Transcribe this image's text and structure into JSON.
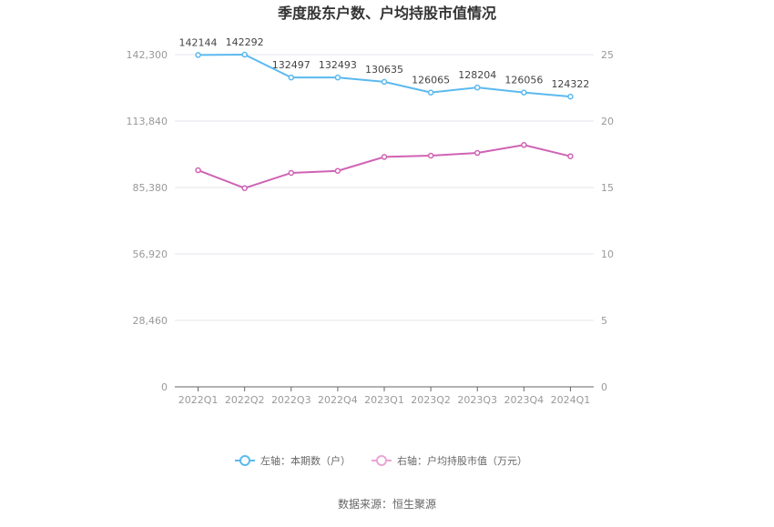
{
  "chart_data": {
    "type": "line",
    "title": "季度股东户数、户均持股市值情况",
    "categories": [
      "2022Q1",
      "2022Q2",
      "2022Q3",
      "2022Q4",
      "2023Q1",
      "2023Q2",
      "2023Q3",
      "2023Q4",
      "2024Q1"
    ],
    "left_axis": {
      "ylim": [
        0,
        142300
      ],
      "ticks": [
        0,
        28460,
        56920,
        85380,
        113840,
        142300
      ],
      "tick_labels": [
        "0",
        "28,460",
        "56,920",
        "85,380",
        "113,840",
        "142,300"
      ]
    },
    "right_axis": {
      "ylim": [
        0,
        25
      ],
      "ticks": [
        0,
        5,
        10,
        15,
        20,
        25
      ],
      "tick_labels": [
        "0",
        "5",
        "10",
        "15",
        "20",
        "25"
      ]
    },
    "series": [
      {
        "name": "左轴：本期数（户）",
        "axis": "left",
        "color": "#5bb9ef",
        "values": [
          142144,
          142292,
          132497,
          132493,
          130635,
          126065,
          128204,
          126056,
          124322
        ],
        "value_labels": [
          "142144",
          "142292",
          "132497",
          "132493",
          "130635",
          "126065",
          "128204",
          "126056",
          "124322"
        ]
      },
      {
        "name": "右轴：户均持股市值（万元）",
        "axis": "right",
        "color": "#d063b4",
        "values": [
          16.3,
          14.95,
          16.1,
          16.25,
          17.3,
          17.4,
          17.6,
          18.2,
          17.35
        ]
      }
    ],
    "legend_position": "bottom",
    "grid": true
  },
  "legend": {
    "left_label": "左轴：本期数（户）",
    "right_label": "右轴：户均持股市值（万元）",
    "left_color": "#5bb9ef",
    "right_color": "#eaa4d4"
  },
  "footer": {
    "source": "数据来源：恒生聚源"
  }
}
